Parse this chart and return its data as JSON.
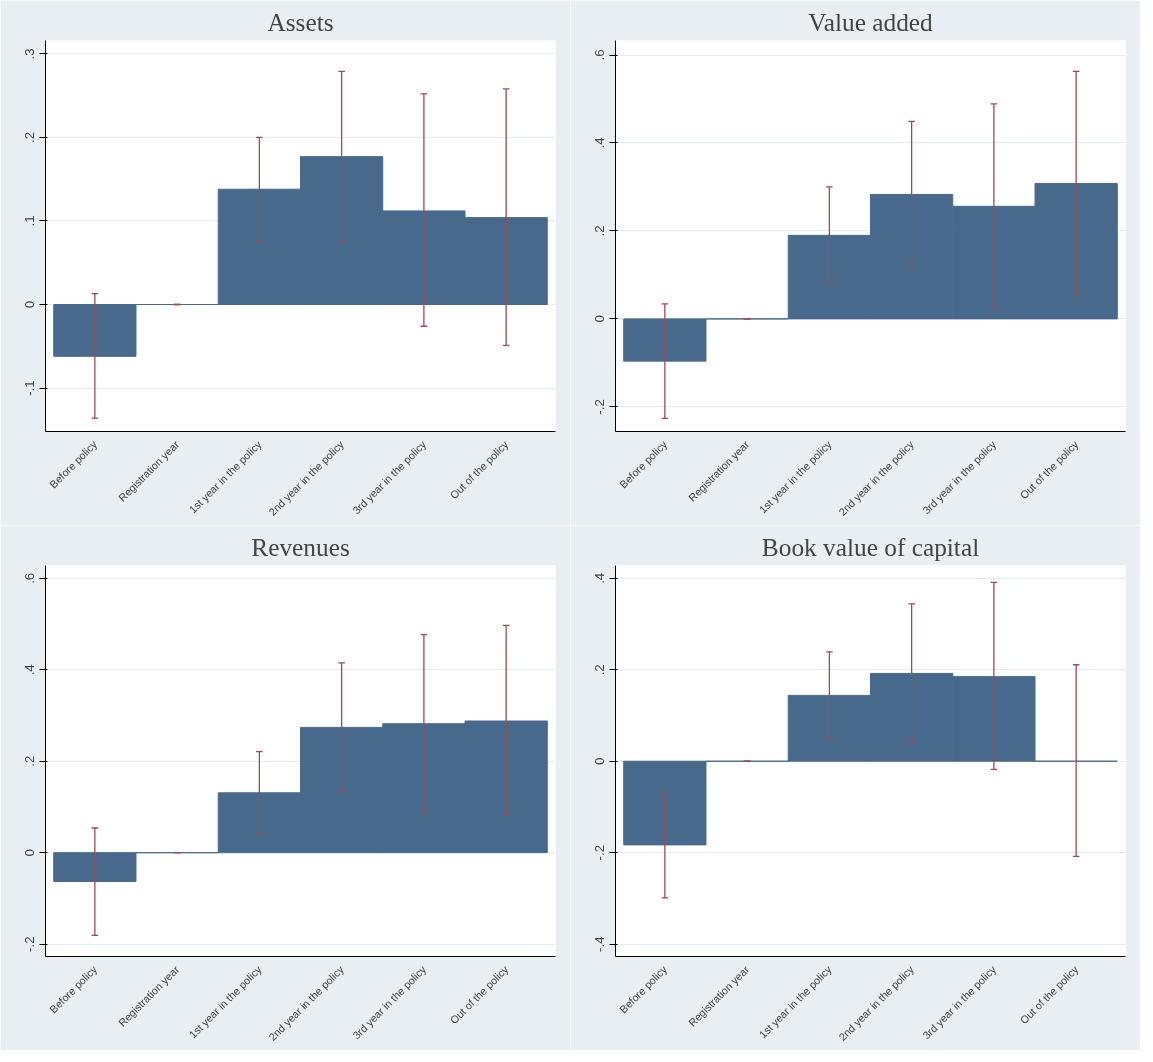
{
  "chart_data": [
    {
      "type": "bar",
      "title": "Assets",
      "categories": [
        "Before policy",
        "Registration year",
        "1st year in the policy",
        "2nd year in the policy",
        "3rd year in the policy",
        "Out of the policy"
      ],
      "color": "#476a8c",
      "values": [
        -0.062,
        0,
        0.138,
        0.177,
        0.112,
        0.104
      ],
      "errors": [
        [
          -0.136,
          0.013
        ],
        [
          0,
          0
        ],
        [
          0.076,
          0.2
        ],
        [
          0.076,
          0.279
        ],
        [
          -0.026,
          0.252
        ],
        [
          -0.049,
          0.258
        ]
      ],
      "ylim": [
        -0.152,
        0.316
      ],
      "yticks": [
        {
          "value": -0.1,
          "label": "-.1"
        },
        0,
        {
          "value": 0.1,
          "label": ".1"
        },
        {
          "value": 0.2,
          "label": ".2"
        },
        {
          "value": 0.3,
          "label": ".3"
        }
      ],
      "grid": "y"
    },
    {
      "type": "bar",
      "title": "Value added",
      "categories": [
        "Before policy",
        "Registration year",
        "1st year in the policy",
        "2nd year in the policy",
        "3rd year in the policy",
        "Out of the policy"
      ],
      "color": "#476a8c",
      "values": [
        -0.096,
        0,
        0.19,
        0.283,
        0.256,
        0.308
      ],
      "errors": [
        [
          -0.226,
          0.034
        ],
        [
          0,
          0
        ],
        [
          0.083,
          0.3
        ],
        [
          0.12,
          0.449
        ],
        [
          0.025,
          0.489
        ],
        [
          0.056,
          0.563
        ]
      ],
      "ylim": [
        -0.256,
        0.633
      ],
      "yticks": [
        {
          "value": -0.2,
          "label": "-.2"
        },
        0,
        {
          "value": 0.2,
          "label": ".2"
        },
        {
          "value": 0.4,
          "label": ".4"
        },
        {
          "value": 0.6,
          "label": ".6"
        }
      ],
      "grid": "y"
    },
    {
      "type": "bar",
      "title": "Revenues",
      "categories": [
        "Before policy",
        "Registration year",
        "1st year in the policy",
        "2nd year in the policy",
        "3rd year in the policy",
        "Out of the policy"
      ],
      "color": "#476a8c",
      "values": [
        -0.063,
        0,
        0.131,
        0.274,
        0.282,
        0.288
      ],
      "errors": [
        [
          -0.181,
          0.054
        ],
        [
          0,
          0
        ],
        [
          0.042,
          0.221
        ],
        [
          0.136,
          0.415
        ],
        [
          0.089,
          0.477
        ],
        [
          0.082,
          0.497
        ]
      ],
      "ylim": [
        -0.227,
        0.628
      ],
      "yticks": [
        {
          "value": -0.2,
          "label": "-.2"
        },
        0,
        {
          "value": 0.2,
          "label": ".2"
        },
        {
          "value": 0.4,
          "label": ".4"
        },
        {
          "value": 0.6,
          "label": ".6"
        }
      ],
      "grid": "y"
    },
    {
      "type": "bar",
      "title": "Book value of capital",
      "categories": [
        "Before policy",
        "Registration year",
        "1st year in the policy",
        "2nd year in the policy",
        "3rd year in the policy",
        "Out of the policy"
      ],
      "color": "#476a8c",
      "values": [
        -0.183,
        0,
        0.144,
        0.192,
        0.185,
        0.0
      ],
      "errors": [
        [
          -0.299,
          -0.069
        ],
        [
          0,
          0
        ],
        [
          0.051,
          0.239
        ],
        [
          0.042,
          0.344
        ],
        [
          -0.018,
          0.391
        ],
        [
          -0.208,
          0.211
        ]
      ],
      "ylim": [
        -0.427,
        0.428
      ],
      "yticks": [
        {
          "value": -0.4,
          "label": "-.4"
        },
        {
          "value": -0.2,
          "label": "-.2"
        },
        0,
        {
          "value": 0.2,
          "label": ".2"
        },
        {
          "value": 0.4,
          "label": ".4"
        }
      ],
      "grid": "y"
    }
  ]
}
